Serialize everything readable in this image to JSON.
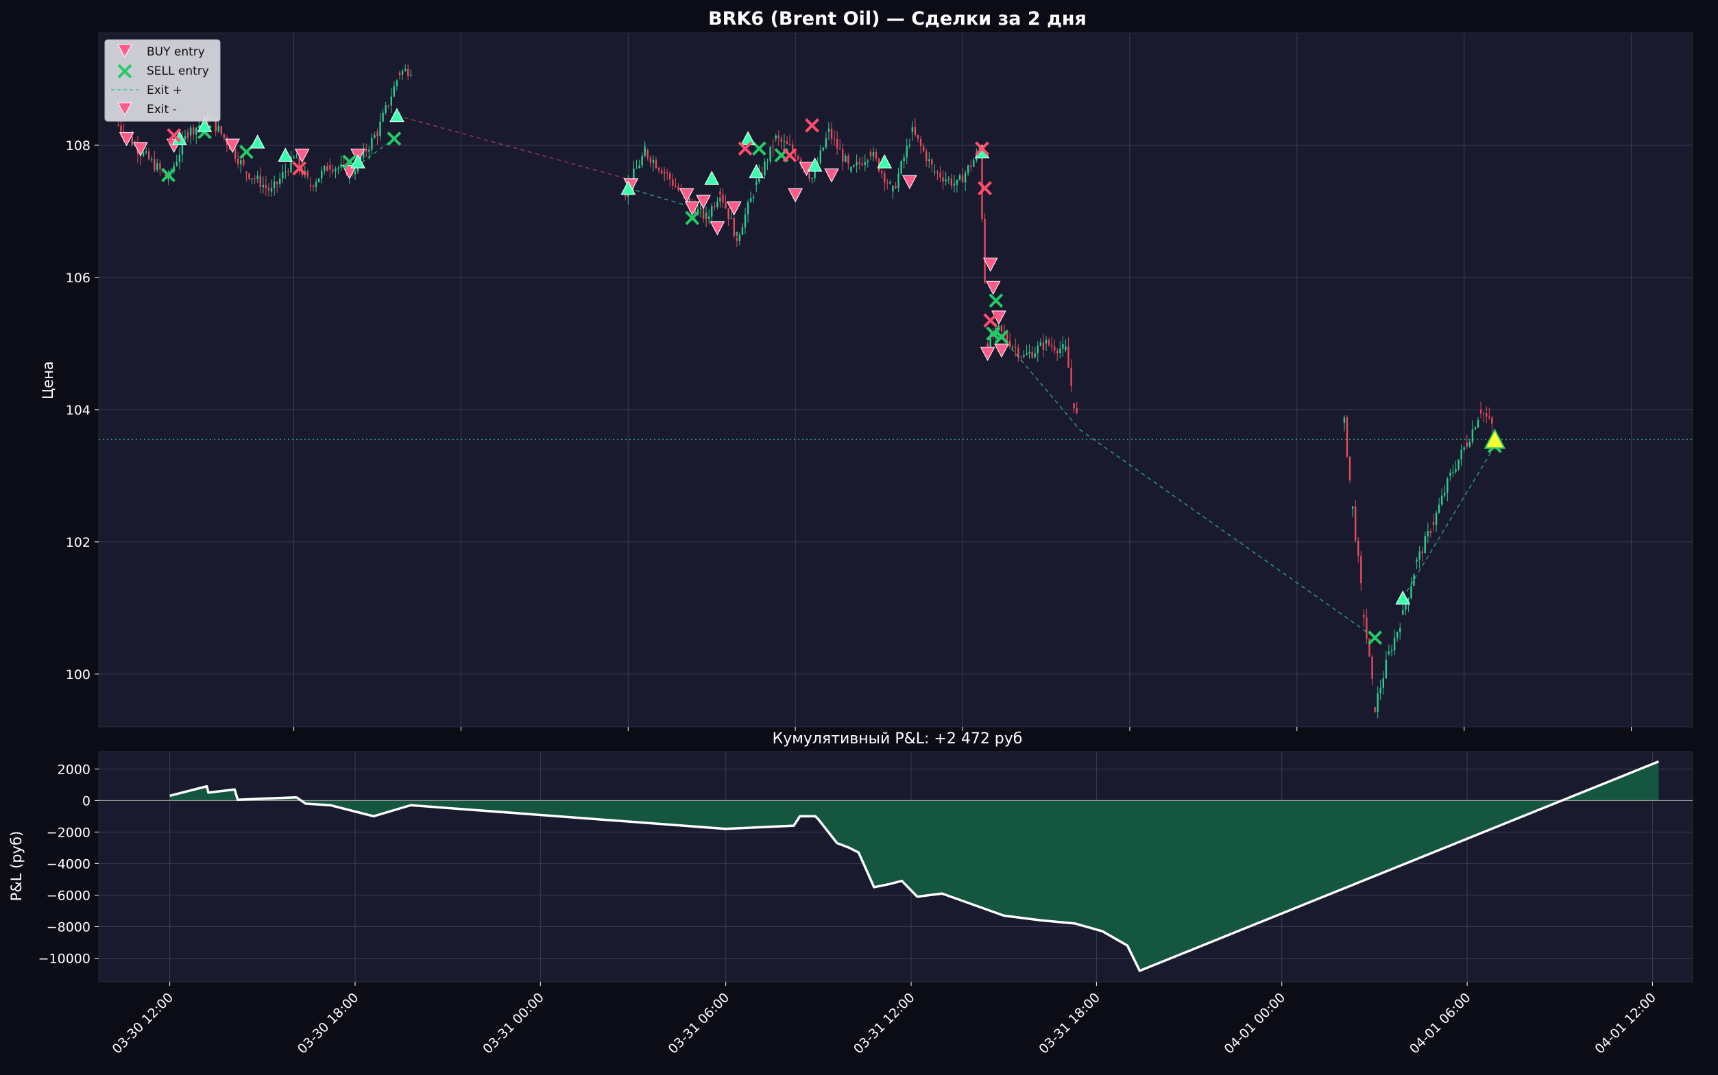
{
  "title": "BRK6 (Brent Oil) — Сделки за 2 дня",
  "pnl_title": "Кумулятивный P&L: +2 472 руб",
  "colors": {
    "background": "#0c0c16",
    "plot_bg": "#1a1a2e",
    "grid": "#3b3b52",
    "candle_up": "#2ecc8f",
    "candle_down": "#e74c5c",
    "buy_marker": "#ff5c8a",
    "sell_marker": "#22cc66",
    "exit_plus": "#3dffb0",
    "exit_minus": "#ff4d6d",
    "highlight": "#ffff33",
    "pnl_fill": "#145a40",
    "pnl_line": "#ffffff"
  },
  "chart_data": [
    {
      "type": "candlestick",
      "title": "BRK6 (Brent Oil) — Сделки за 2 дня",
      "ylabel": "Цена",
      "ylim": [
        99.2,
        109.7
      ],
      "yticks": [
        100,
        102,
        104,
        106,
        108
      ],
      "xlim_hours": [
        -7.0,
        50.2
      ],
      "x_ticks_hours": [
        0,
        6,
        12,
        18,
        24,
        30,
        36,
        42,
        48
      ],
      "x_tick_labels": [
        "",
        "",
        "",
        "",
        "",
        "",
        "",
        "",
        ""
      ],
      "reference_line": 103.55,
      "legend": {
        "placement": "top-left",
        "entries": [
          "BUY entry",
          "SELL entry",
          "Exit +",
          "Exit -"
        ]
      },
      "price_path": [
        [
          -6.3,
          108.3
        ],
        [
          -5.5,
          107.9
        ],
        [
          -4.5,
          107.5
        ],
        [
          -3.8,
          108.2
        ],
        [
          -3.0,
          108.4
        ],
        [
          -2.3,
          108.0
        ],
        [
          -1.7,
          107.6
        ],
        [
          -0.8,
          107.3
        ],
        [
          0.0,
          107.8
        ],
        [
          0.6,
          107.4
        ],
        [
          1.3,
          107.7
        ],
        [
          2.1,
          107.6
        ],
        [
          3.0,
          108.2
        ],
        [
          3.8,
          109.1
        ],
        [
          4.2,
          109.15
        ],
        [
          11.9,
          107.3
        ],
        [
          12.6,
          107.9
        ],
        [
          13.3,
          107.6
        ],
        [
          14.2,
          107.1
        ],
        [
          14.8,
          106.9
        ],
        [
          15.3,
          107.3
        ],
        [
          15.9,
          106.6
        ],
        [
          16.6,
          107.4
        ],
        [
          17.3,
          108.1
        ],
        [
          18.0,
          107.9
        ],
        [
          18.6,
          107.5
        ],
        [
          19.2,
          108.2
        ],
        [
          20.0,
          107.6
        ],
        [
          20.7,
          107.9
        ],
        [
          21.5,
          107.3
        ],
        [
          22.2,
          108.2
        ],
        [
          23.0,
          107.6
        ],
        [
          23.8,
          107.4
        ],
        [
          24.6,
          107.9
        ],
        [
          24.9,
          105.0
        ],
        [
          25.3,
          105.2
        ],
        [
          26.2,
          104.8
        ],
        [
          27.0,
          105.0
        ],
        [
          27.7,
          104.9
        ],
        [
          28.0,
          104.1
        ],
        [
          28.2,
          103.7
        ],
        [
          37.7,
          103.8
        ],
        [
          38.0,
          102.5
        ],
        [
          38.4,
          100.9
        ],
        [
          38.8,
          99.5
        ],
        [
          39.3,
          100.3
        ],
        [
          39.8,
          100.9
        ],
        [
          40.3,
          101.7
        ],
        [
          40.9,
          102.3
        ],
        [
          41.5,
          103.0
        ],
        [
          42.1,
          103.5
        ],
        [
          42.6,
          104.0
        ],
        [
          43.1,
          103.7
        ]
      ],
      "markers": [
        {
          "kind": "buy",
          "x": -6.0,
          "y": 108.1
        },
        {
          "kind": "buy",
          "x": -5.5,
          "y": 107.95
        },
        {
          "kind": "buy",
          "x": -4.3,
          "y": 108.0
        },
        {
          "kind": "buy",
          "x": -2.2,
          "y": 108.0
        },
        {
          "kind": "buy",
          "x": 0.3,
          "y": 107.85
        },
        {
          "kind": "buy",
          "x": 2.0,
          "y": 107.6
        },
        {
          "kind": "buy",
          "x": 2.3,
          "y": 107.85
        },
        {
          "kind": "buy",
          "x": 12.1,
          "y": 107.4
        },
        {
          "kind": "buy",
          "x": 14.1,
          "y": 107.25
        },
        {
          "kind": "buy",
          "x": 14.3,
          "y": 107.05
        },
        {
          "kind": "buy",
          "x": 14.7,
          "y": 107.15
        },
        {
          "kind": "buy",
          "x": 15.2,
          "y": 106.75
        },
        {
          "kind": "buy",
          "x": 15.8,
          "y": 107.05
        },
        {
          "kind": "buy",
          "x": 18.0,
          "y": 107.25
        },
        {
          "kind": "buy",
          "x": 18.4,
          "y": 107.65
        },
        {
          "kind": "buy",
          "x": 19.3,
          "y": 107.55
        },
        {
          "kind": "buy",
          "x": 22.1,
          "y": 107.45
        },
        {
          "kind": "buy",
          "x": 25.0,
          "y": 106.2
        },
        {
          "kind": "buy",
          "x": 25.1,
          "y": 105.85
        },
        {
          "kind": "buy",
          "x": 25.3,
          "y": 105.4
        },
        {
          "kind": "buy",
          "x": 24.9,
          "y": 104.85
        },
        {
          "kind": "buy",
          "x": 25.4,
          "y": 104.9
        },
        {
          "kind": "sell",
          "x": -4.5,
          "y": 107.55
        },
        {
          "kind": "sell",
          "x": -3.2,
          "y": 108.2
        },
        {
          "kind": "sell",
          "x": -1.7,
          "y": 107.9
        },
        {
          "kind": "sell",
          "x": 2.0,
          "y": 107.75
        },
        {
          "kind": "sell",
          "x": 3.6,
          "y": 108.1
        },
        {
          "kind": "sell",
          "x": 14.3,
          "y": 106.9
        },
        {
          "kind": "sell",
          "x": 16.7,
          "y": 107.95
        },
        {
          "kind": "sell",
          "x": 17.5,
          "y": 107.85
        },
        {
          "kind": "sell",
          "x": 25.2,
          "y": 105.65
        },
        {
          "kind": "sell",
          "x": 25.1,
          "y": 105.15
        },
        {
          "kind": "sell",
          "x": 25.4,
          "y": 105.1
        },
        {
          "kind": "sell",
          "x": 38.8,
          "y": 100.55
        },
        {
          "kind": "sell",
          "x": 43.1,
          "y": 103.45
        },
        {
          "kind": "exit_plus",
          "x": -4.1,
          "y": 108.1
        },
        {
          "kind": "exit_plus",
          "x": -3.2,
          "y": 108.3
        },
        {
          "kind": "exit_plus",
          "x": -1.3,
          "y": 108.05
        },
        {
          "kind": "exit_plus",
          "x": -0.3,
          "y": 107.85
        },
        {
          "kind": "exit_plus",
          "x": 2.3,
          "y": 107.75
        },
        {
          "kind": "exit_plus",
          "x": 3.7,
          "y": 108.45
        },
        {
          "kind": "exit_plus",
          "x": 12.0,
          "y": 107.35
        },
        {
          "kind": "exit_plus",
          "x": 15.0,
          "y": 107.5
        },
        {
          "kind": "exit_plus",
          "x": 16.3,
          "y": 108.1
        },
        {
          "kind": "exit_plus",
          "x": 16.6,
          "y": 107.6
        },
        {
          "kind": "exit_plus",
          "x": 18.7,
          "y": 107.7
        },
        {
          "kind": "exit_plus",
          "x": 21.2,
          "y": 107.75
        },
        {
          "kind": "exit_plus",
          "x": 24.7,
          "y": 107.9
        },
        {
          "kind": "exit_plus",
          "x": 39.8,
          "y": 101.15
        },
        {
          "kind": "exit_plus",
          "x": 43.1,
          "y": 103.55,
          "highlight": true
        },
        {
          "kind": "exit_minus",
          "x": -4.3,
          "y": 108.15
        },
        {
          "kind": "exit_minus",
          "x": 0.2,
          "y": 107.65
        },
        {
          "kind": "exit_minus",
          "x": 16.2,
          "y": 107.95
        },
        {
          "kind": "exit_minus",
          "x": 17.8,
          "y": 107.85
        },
        {
          "kind": "exit_minus",
          "x": 18.6,
          "y": 108.3
        },
        {
          "kind": "exit_minus",
          "x": 24.7,
          "y": 107.95
        },
        {
          "kind": "exit_minus",
          "x": 24.8,
          "y": 107.35
        },
        {
          "kind": "exit_minus",
          "x": 25.0,
          "y": 105.35
        }
      ],
      "trade_links": [
        {
          "x1": 3.7,
          "y1": 108.45,
          "x2": 11.9,
          "y2": 107.5,
          "color": "exit_minus"
        },
        {
          "x1": 2.0,
          "y1": 107.6,
          "x2": 3.6,
          "y2": 108.1,
          "color": "exit_plus"
        },
        {
          "x1": 12.0,
          "y1": 107.35,
          "x2": 14.0,
          "y2": 107.1,
          "color": "exit_plus"
        },
        {
          "x1": 25.4,
          "y1": 105.1,
          "x2": 28.2,
          "y2": 103.7,
          "color": "exit_plus"
        },
        {
          "x1": 28.2,
          "y1": 103.7,
          "x2": 38.8,
          "y2": 100.55,
          "color": "exit_plus"
        },
        {
          "x1": 39.8,
          "y1": 101.15,
          "x2": 43.1,
          "y2": 103.45,
          "color": "exit_plus"
        }
      ]
    },
    {
      "type": "area",
      "title": "Кумулятивный P&L: +2 472 руб",
      "ylabel": "P&L (руб)",
      "ylim": [
        -11500,
        3100
      ],
      "yticks": [
        2000,
        0,
        -2000,
        -4000,
        -6000,
        -8000,
        -10000
      ],
      "ytick_labels": [
        "2000",
        "0",
        "−2000",
        "−4000",
        "−6000",
        "−8000",
        "−10000"
      ],
      "xlim_hours": [
        -2.3,
        49.3
      ],
      "x_ticks_hours": [
        0,
        6,
        12,
        18,
        24,
        30,
        36,
        42,
        48
      ],
      "x_tick_labels": [
        "03-30 12:00",
        "03-30 18:00",
        "03-31 00:00",
        "03-31 06:00",
        "03-31 12:00",
        "03-31 18:00",
        "04-01 00:00",
        "04-01 06:00",
        "04-01 12:00"
      ],
      "x": [
        0.0,
        1.2,
        1.25,
        2.1,
        2.2,
        4.1,
        4.4,
        5.2,
        6.2,
        6.6,
        7.8,
        18.0,
        20.2,
        20.4,
        20.9,
        21.0,
        21.6,
        22.0,
        22.3,
        22.8,
        23.3,
        23.7,
        24.2,
        25.0,
        27.0,
        28.2,
        29.3,
        30.2,
        31.0,
        31.4,
        48.2
      ],
      "y": [
        300,
        900,
        500,
        700,
        50,
        200,
        -200,
        -300,
        -800,
        -1000,
        -300,
        -1800,
        -1600,
        -1000,
        -1000,
        -1200,
        -2700,
        -3000,
        -3300,
        -5500,
        -5300,
        -5100,
        -6100,
        -5900,
        -7300,
        -7600,
        -7800,
        -8300,
        -9200,
        -10800,
        2472
      ]
    }
  ]
}
